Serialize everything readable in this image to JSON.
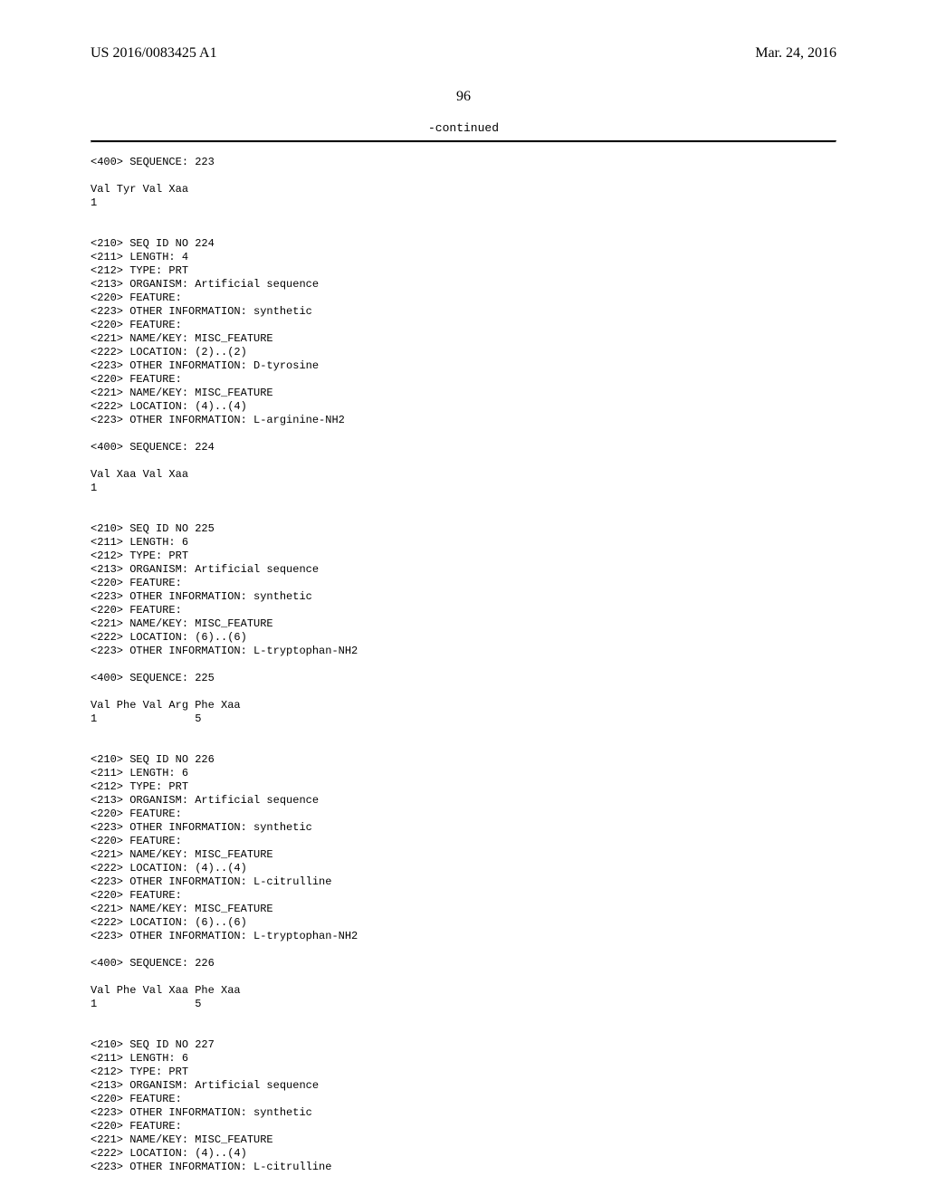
{
  "header": {
    "left": "US 2016/0083425 A1",
    "right": "Mar. 24, 2016"
  },
  "page_number": "96",
  "continued_label": "-continued",
  "seq_text": "<400> SEQUENCE: 223\n\nVal Tyr Val Xaa\n1\n\n\n<210> SEQ ID NO 224\n<211> LENGTH: 4\n<212> TYPE: PRT\n<213> ORGANISM: Artificial sequence\n<220> FEATURE:\n<223> OTHER INFORMATION: synthetic\n<220> FEATURE:\n<221> NAME/KEY: MISC_FEATURE\n<222> LOCATION: (2)..(2)\n<223> OTHER INFORMATION: D-tyrosine\n<220> FEATURE:\n<221> NAME/KEY: MISC_FEATURE\n<222> LOCATION: (4)..(4)\n<223> OTHER INFORMATION: L-arginine-NH2\n\n<400> SEQUENCE: 224\n\nVal Xaa Val Xaa\n1\n\n\n<210> SEQ ID NO 225\n<211> LENGTH: 6\n<212> TYPE: PRT\n<213> ORGANISM: Artificial sequence\n<220> FEATURE:\n<223> OTHER INFORMATION: synthetic\n<220> FEATURE:\n<221> NAME/KEY: MISC_FEATURE\n<222> LOCATION: (6)..(6)\n<223> OTHER INFORMATION: L-tryptophan-NH2\n\n<400> SEQUENCE: 225\n\nVal Phe Val Arg Phe Xaa\n1               5\n\n\n<210> SEQ ID NO 226\n<211> LENGTH: 6\n<212> TYPE: PRT\n<213> ORGANISM: Artificial sequence\n<220> FEATURE:\n<223> OTHER INFORMATION: synthetic\n<220> FEATURE:\n<221> NAME/KEY: MISC_FEATURE\n<222> LOCATION: (4)..(4)\n<223> OTHER INFORMATION: L-citrulline\n<220> FEATURE:\n<221> NAME/KEY: MISC_FEATURE\n<222> LOCATION: (6)..(6)\n<223> OTHER INFORMATION: L-tryptophan-NH2\n\n<400> SEQUENCE: 226\n\nVal Phe Val Xaa Phe Xaa\n1               5\n\n\n<210> SEQ ID NO 227\n<211> LENGTH: 6\n<212> TYPE: PRT\n<213> ORGANISM: Artificial sequence\n<220> FEATURE:\n<223> OTHER INFORMATION: synthetic\n<220> FEATURE:\n<221> NAME/KEY: MISC_FEATURE\n<222> LOCATION: (4)..(4)\n<223> OTHER INFORMATION: L-citrulline"
}
